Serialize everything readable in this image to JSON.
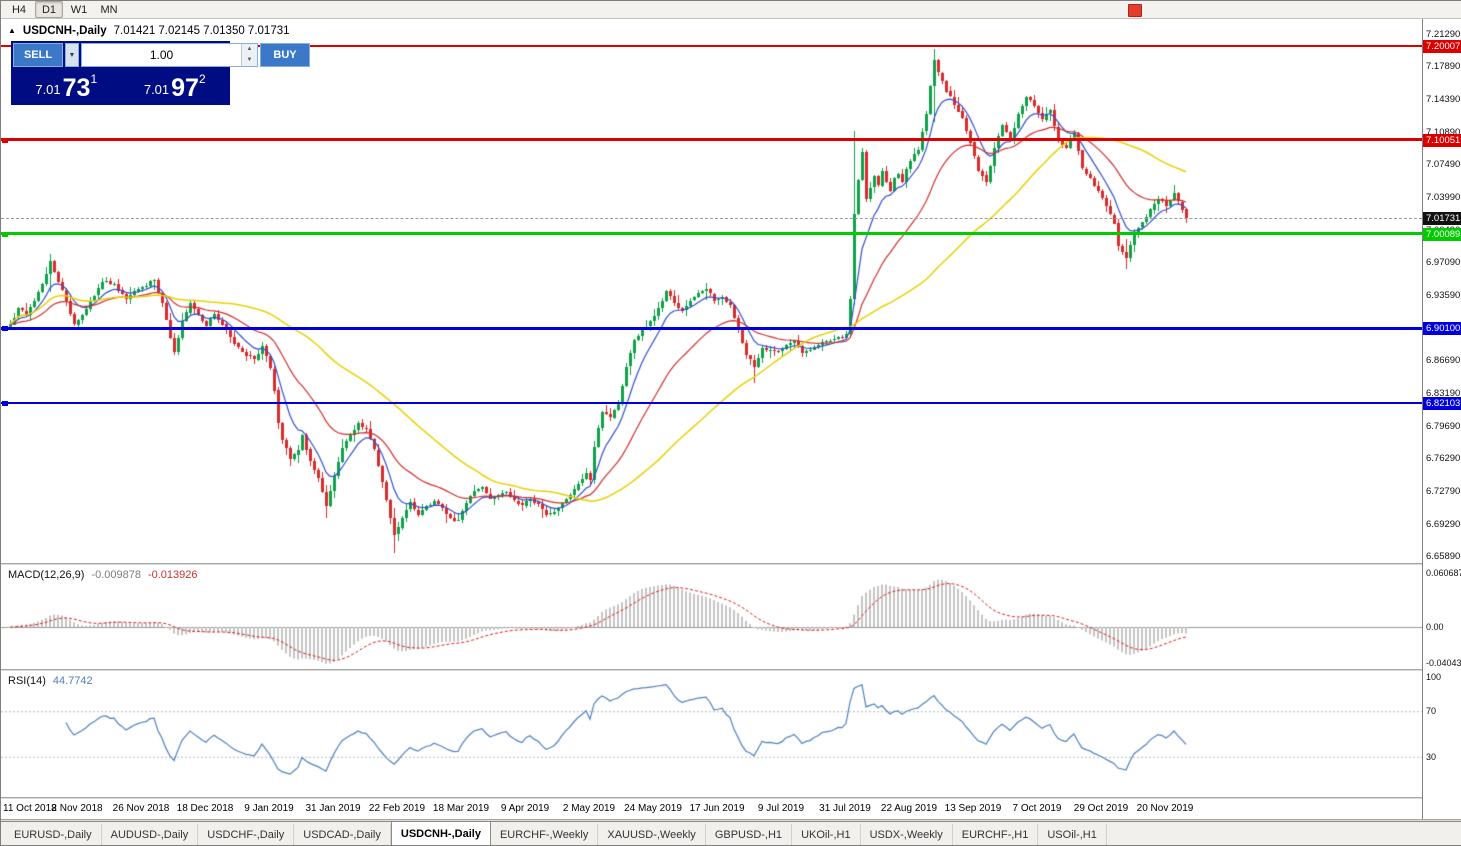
{
  "toolbar": {
    "timeframes": [
      {
        "label": "H4",
        "active": false
      },
      {
        "label": "D1",
        "active": true
      },
      {
        "label": "W1",
        "active": false
      },
      {
        "label": "MN",
        "active": false
      }
    ]
  },
  "chart_header": {
    "collapse_icon": "▲",
    "symbol": "USDCNH-,Daily",
    "ohlc_text": "7.01421 7.02145 7.01350 7.01731"
  },
  "trade_panel": {
    "sell_label": "SELL",
    "buy_label": "BUY",
    "volume": "1.00",
    "bid": {
      "prefix": "7.01",
      "big": "73",
      "sup": "1"
    },
    "ask": {
      "prefix": "7.01",
      "big": "97",
      "sup": "2"
    }
  },
  "tabs": [
    {
      "label": "EURUSD-,Daily",
      "active": false
    },
    {
      "label": "AUDUSD-,Daily",
      "active": false
    },
    {
      "label": "USDCHF-,Daily",
      "active": false
    },
    {
      "label": "USDCAD-,Daily",
      "active": false
    },
    {
      "label": "USDCNH-,Daily",
      "active": true
    },
    {
      "label": "EURCHF-,Weekly",
      "active": false
    },
    {
      "label": "XAUUSD-,Weekly",
      "active": false
    },
    {
      "label": "GBPUSD-,H1",
      "active": false
    },
    {
      "label": "UKOil-,H1",
      "active": false
    },
    {
      "label": "USDX-,Weekly",
      "active": false
    },
    {
      "label": "EURCHF-,H1",
      "active": false
    },
    {
      "label": "USOil-,H1",
      "active": false
    }
  ],
  "chart_data": {
    "type": "candlestick",
    "title": "USDCNH-,Daily",
    "ohlc_readout": {
      "open": "7.01421",
      "high": "7.02145",
      "low": "7.01350",
      "close": "7.01731"
    },
    "bars_total": 295,
    "last_close": 7.01731,
    "y_axis_range": [
      6.6518,
      7.2288
    ],
    "y_ticks": [
      "7.21290",
      "7.17890",
      "7.14390",
      "7.10890",
      "7.07490",
      "7.03990",
      "7.00490",
      "6.97090",
      "6.93590",
      "6.90090",
      "6.86690",
      "6.83190",
      "6.79690",
      "6.76290",
      "6.72790",
      "6.69290",
      "6.65890"
    ],
    "x_ticks": [
      {
        "label": "11 Oct 2018",
        "bar": 1
      },
      {
        "label": "2 Nov 2018",
        "bar": 17
      },
      {
        "label": "26 Nov 2018",
        "bar": 33
      },
      {
        "label": "18 Dec 2018",
        "bar": 49
      },
      {
        "label": "9 Jan 2019",
        "bar": 65
      },
      {
        "label": "31 Jan 2019",
        "bar": 81
      },
      {
        "label": "22 Feb 2019",
        "bar": 97
      },
      {
        "label": "18 Mar 2019",
        "bar": 113
      },
      {
        "label": "9 Apr 2019",
        "bar": 129
      },
      {
        "label": "2 May 2019",
        "bar": 145
      },
      {
        "label": "24 May 2019",
        "bar": 161
      },
      {
        "label": "17 Jun 2019",
        "bar": 177
      },
      {
        "label": "9 Jul 2019",
        "bar": 193
      },
      {
        "label": "31 Jul 2019",
        "bar": 209
      },
      {
        "label": "22 Aug 2019",
        "bar": 225
      },
      {
        "label": "13 Sep 2019",
        "bar": 241
      },
      {
        "label": "7 Oct 2019",
        "bar": 257
      },
      {
        "label": "29 Oct 2019",
        "bar": 273
      },
      {
        "label": "20 Nov 2019",
        "bar": 289
      }
    ],
    "horizontal_lines": [
      {
        "price": 7.20007,
        "label": "7.20007",
        "color": "#dd0000",
        "thickness": 2,
        "handle": false
      },
      {
        "price": 7.10051,
        "label": "7.10051",
        "color": "#dd0000",
        "thickness": 3,
        "handle": true
      },
      {
        "price": 7.00089,
        "label": "7.00089",
        "color": "#00cc00",
        "thickness": 3,
        "handle": true
      },
      {
        "price": 6.901,
        "label": "6.90100",
        "color": "#0000dd",
        "thickness": 3,
        "handle": true
      },
      {
        "price": 6.82103,
        "label": "6.82103",
        "color": "#0000dd",
        "thickness": 2,
        "handle": true
      }
    ],
    "current_price": {
      "price": 7.01731,
      "label": "7.01731",
      "color": "#111111"
    },
    "candle_colors": {
      "up": "#10a04a",
      "down": "#d92b2b"
    },
    "moving_averages": [
      {
        "type": "ema",
        "period": 8,
        "color": "#3350d0"
      },
      {
        "type": "ema",
        "period": 25,
        "color": "#d03030"
      },
      {
        "type": "sma",
        "period": 55,
        "color": "#e8d000"
      }
    ],
    "close_keyframes": [
      [
        0,
        6.905
      ],
      [
        2,
        6.922
      ],
      [
        4,
        6.915
      ],
      [
        6,
        6.93
      ],
      [
        8,
        6.948
      ],
      [
        10,
        6.972
      ],
      [
        12,
        6.95
      ],
      [
        14,
        6.93
      ],
      [
        16,
        6.905
      ],
      [
        18,
        6.915
      ],
      [
        20,
        6.93
      ],
      [
        23,
        6.95
      ],
      [
        26,
        6.948
      ],
      [
        29,
        6.932
      ],
      [
        31,
        6.94
      ],
      [
        33,
        6.945
      ],
      [
        36,
        6.952
      ],
      [
        38,
        6.928
      ],
      [
        40,
        6.89
      ],
      [
        41,
        6.875
      ],
      [
        43,
        6.908
      ],
      [
        45,
        6.928
      ],
      [
        47,
        6.915
      ],
      [
        49,
        6.903
      ],
      [
        51,
        6.916
      ],
      [
        53,
        6.905
      ],
      [
        55,
        6.892
      ],
      [
        57,
        6.88
      ],
      [
        59,
        6.872
      ],
      [
        61,
        6.868
      ],
      [
        63,
        6.882
      ],
      [
        65,
        6.858
      ],
      [
        66,
        6.835
      ],
      [
        67,
        6.8
      ],
      [
        68,
        6.782
      ],
      [
        70,
        6.762
      ],
      [
        72,
        6.772
      ],
      [
        73,
        6.788
      ],
      [
        75,
        6.76
      ],
      [
        77,
        6.742
      ],
      [
        79,
        6.712
      ],
      [
        80,
        6.728
      ],
      [
        81,
        6.744
      ],
      [
        83,
        6.774
      ],
      [
        85,
        6.788
      ],
      [
        87,
        6.8
      ],
      [
        89,
        6.794
      ],
      [
        91,
        6.772
      ],
      [
        93,
        6.738
      ],
      [
        95,
        6.7
      ],
      [
        96,
        6.682
      ],
      [
        98,
        6.7
      ],
      [
        100,
        6.716
      ],
      [
        102,
        6.703
      ],
      [
        104,
        6.712
      ],
      [
        106,
        6.718
      ],
      [
        108,
        6.71
      ],
      [
        110,
        6.7
      ],
      [
        112,
        6.697
      ],
      [
        114,
        6.715
      ],
      [
        116,
        6.728
      ],
      [
        118,
        6.732
      ],
      [
        120,
        6.72
      ],
      [
        122,
        6.724
      ],
      [
        124,
        6.727
      ],
      [
        126,
        6.718
      ],
      [
        128,
        6.713
      ],
      [
        130,
        6.72
      ],
      [
        132,
        6.714
      ],
      [
        134,
        6.703
      ],
      [
        136,
        6.706
      ],
      [
        138,
        6.715
      ],
      [
        140,
        6.724
      ],
      [
        142,
        6.736
      ],
      [
        144,
        6.747
      ],
      [
        145,
        6.74
      ],
      [
        146,
        6.775
      ],
      [
        147,
        6.795
      ],
      [
        148,
        6.812
      ],
      [
        150,
        6.806
      ],
      [
        152,
        6.82
      ],
      [
        154,
        6.86
      ],
      [
        156,
        6.888
      ],
      [
        158,
        6.9
      ],
      [
        160,
        6.908
      ],
      [
        162,
        6.922
      ],
      [
        164,
        6.94
      ],
      [
        166,
        6.928
      ],
      [
        168,
        6.92
      ],
      [
        170,
        6.93
      ],
      [
        172,
        6.938
      ],
      [
        174,
        6.942
      ],
      [
        176,
        6.93
      ],
      [
        178,
        6.934
      ],
      [
        180,
        6.925
      ],
      [
        182,
        6.9
      ],
      [
        184,
        6.872
      ],
      [
        186,
        6.86
      ],
      [
        188,
        6.88
      ],
      [
        190,
        6.878
      ],
      [
        192,
        6.876
      ],
      [
        194,
        6.883
      ],
      [
        196,
        6.887
      ],
      [
        198,
        6.875
      ],
      [
        200,
        6.878
      ],
      [
        202,
        6.883
      ],
      [
        204,
        6.887
      ],
      [
        206,
        6.889
      ],
      [
        208,
        6.891
      ],
      [
        209,
        6.895
      ],
      [
        210,
        6.932
      ],
      [
        211,
        7.022
      ],
      [
        212,
        7.058
      ],
      [
        213,
        7.088
      ],
      [
        214,
        7.038
      ],
      [
        215,
        7.05
      ],
      [
        216,
        7.062
      ],
      [
        217,
        7.052
      ],
      [
        218,
        7.068
      ],
      [
        219,
        7.056
      ],
      [
        220,
        7.046
      ],
      [
        221,
        7.06
      ],
      [
        222,
        7.064
      ],
      [
        223,
        7.056
      ],
      [
        224,
        7.07
      ],
      [
        225,
        7.078
      ],
      [
        227,
        7.09
      ],
      [
        229,
        7.128
      ],
      [
        231,
        7.185
      ],
      [
        232,
        7.172
      ],
      [
        234,
        7.152
      ],
      [
        236,
        7.138
      ],
      [
        238,
        7.124
      ],
      [
        240,
        7.098
      ],
      [
        242,
        7.068
      ],
      [
        244,
        7.056
      ],
      [
        246,
        7.092
      ],
      [
        248,
        7.116
      ],
      [
        250,
        7.1
      ],
      [
        252,
        7.128
      ],
      [
        254,
        7.146
      ],
      [
        256,
        7.136
      ],
      [
        258,
        7.122
      ],
      [
        260,
        7.132
      ],
      [
        262,
        7.1
      ],
      [
        264,
        7.092
      ],
      [
        266,
        7.108
      ],
      [
        268,
        7.07
      ],
      [
        270,
        7.06
      ],
      [
        272,
        7.046
      ],
      [
        274,
        7.03
      ],
      [
        276,
        7.012
      ],
      [
        277,
        6.988
      ],
      [
        279,
        6.976
      ],
      [
        281,
        7.002
      ],
      [
        283,
        7.013
      ],
      [
        285,
        7.027
      ],
      [
        287,
        7.038
      ],
      [
        289,
        7.031
      ],
      [
        291,
        7.044
      ],
      [
        293,
        7.027
      ],
      [
        294,
        7.01731
      ]
    ],
    "wick_overrides": [
      [
        10,
        6.98,
        6.94
      ],
      [
        79,
        6.735,
        6.7
      ],
      [
        96,
        6.71,
        6.662
      ],
      [
        186,
        6.872,
        6.842
      ],
      [
        211,
        7.11,
        6.925
      ],
      [
        231,
        7.197,
        7.12
      ],
      [
        279,
        6.995,
        6.963
      ]
    ],
    "indicators": {
      "macd": {
        "name": "MACD(12,26,9)",
        "fast": 12,
        "slow": 26,
        "signal": 9,
        "current_main": "-0.009878",
        "current_signal": "-0.013926",
        "axis_labels": [
          {
            "label": "0.060687",
            "value": 0.060687
          },
          {
            "label": "0.00",
            "value": 0
          },
          {
            "label": "-0.040432",
            "value": -0.040432
          }
        ],
        "histogram_color": "#c4c4c4",
        "signal_color": "#dd2222"
      },
      "rsi": {
        "name": "RSI(14)",
        "period": 14,
        "current": "44.7742",
        "axis_labels": [
          {
            "label": "100",
            "value": 100
          },
          {
            "label": "70",
            "value": 70
          },
          {
            "label": "30",
            "value": 30
          }
        ],
        "levels": [
          70,
          30
        ],
        "line_color": "#4f81bd"
      }
    }
  }
}
